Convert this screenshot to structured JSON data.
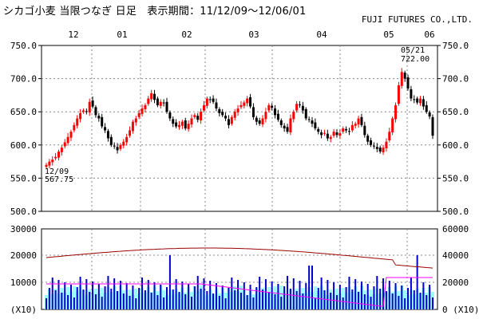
{
  "header": {
    "title": "シカゴ小麦 当限つなぎ 日足　表示期間：11/12/09～12/06/01",
    "source": "FUJI FUTURES CO.,LTD."
  },
  "colors": {
    "up_candle": "#ff0000",
    "down_candle": "#000000",
    "volume_bar": "#0000cc",
    "open_interest_fill": "#99ffff",
    "line_maroon": "#990000",
    "line_magenta": "#ff00ff",
    "grid": "#888888"
  },
  "annotations": {
    "high": {
      "date": "05/21",
      "value": "722.00"
    },
    "low": {
      "date": "12/09",
      "value": "567.75"
    }
  },
  "chart_data": [
    {
      "type": "candlestick",
      "x_tick_labels": [
        "12",
        "01",
        "02",
        "03",
        "04",
        "05",
        "06"
      ],
      "y_tick_labels": [
        "750.0",
        "700.0",
        "650.0",
        "600.0",
        "550.0",
        "500.0"
      ],
      "ylim": [
        500,
        750
      ],
      "grid": true,
      "period": "11/12/09～12/06/01",
      "close_approx": [
        570,
        575,
        578,
        582,
        590,
        596,
        604,
        612,
        620,
        630,
        640,
        648,
        652,
        650,
        665,
        658,
        645,
        640,
        628,
        622,
        610,
        600,
        598,
        592,
        600,
        605,
        612,
        622,
        635,
        640,
        648,
        655,
        660,
        670,
        678,
        668,
        660,
        665,
        663,
        650,
        640,
        632,
        628,
        630,
        635,
        625,
        632,
        640,
        645,
        638,
        650,
        660,
        670,
        668,
        665,
        655,
        648,
        645,
        640,
        630,
        642,
        650,
        655,
        660,
        664,
        670,
        658,
        642,
        635,
        632,
        640,
        650,
        660,
        656,
        645,
        638,
        630,
        625,
        620,
        640,
        650,
        662,
        660,
        652,
        640,
        638,
        632,
        625,
        620,
        615,
        618,
        610,
        612,
        620,
        615,
        618,
        625,
        622,
        620,
        630,
        632,
        640,
        630,
        615,
        605,
        600,
        598,
        594,
        590,
        596,
        605,
        620,
        640,
        660,
        690,
        710,
        700,
        685,
        670,
        668,
        664,
        670,
        658,
        650,
        643,
        614
      ],
      "volume_axis_labels": [
        "30000",
        "20000",
        "10000",
        "(X10)"
      ],
      "open_interest_axis_labels": [
        "60000",
        "40000",
        "20000",
        "0 (X10)"
      ]
    }
  ]
}
